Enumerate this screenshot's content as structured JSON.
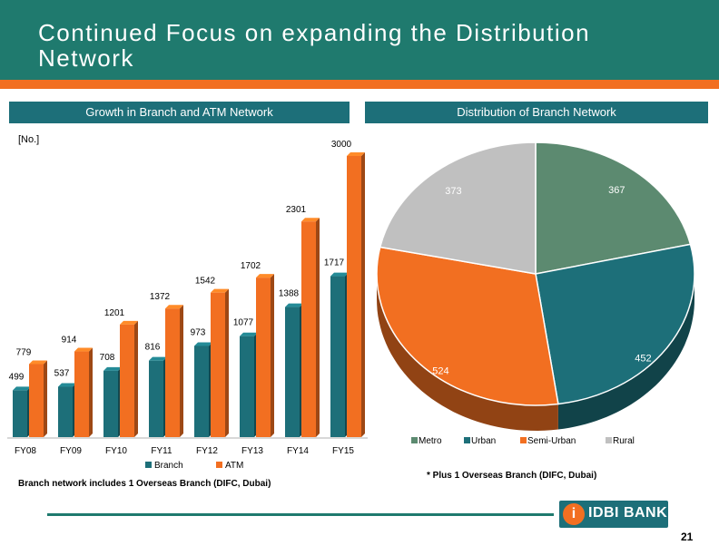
{
  "page": {
    "title": "Continued Focus on expanding the Distribution Network",
    "page_number": "21",
    "logo_text": "IDBI BANK"
  },
  "colors": {
    "header": "#1f7a6e",
    "accent": "#f26f21",
    "section_bar": "#1d6f79"
  },
  "bar_section": {
    "title": "Growth in Branch and ATM Network",
    "unit": "[No.]",
    "note": "Branch network includes 1 Overseas Branch (DIFC, Dubai)"
  },
  "pie_section": {
    "title": "Distribution of Branch Network",
    "note": "* Plus 1 Overseas Branch (DIFC, Dubai)"
  },
  "chart_data": [
    {
      "type": "bar",
      "title": "Growth in Branch and ATM Network",
      "ylabel": "[No.]",
      "categories": [
        "FY08",
        "FY09",
        "FY10",
        "FY11",
        "FY12",
        "FY13",
        "FY14",
        "FY15"
      ],
      "series": [
        {
          "name": "Branch",
          "color": "#1d6f79",
          "values": [
            499,
            537,
            708,
            816,
            973,
            1077,
            1388,
            1717
          ]
        },
        {
          "name": "ATM",
          "color": "#f26f21",
          "values": [
            779,
            914,
            1201,
            1372,
            1542,
            1702,
            2301,
            3000
          ]
        }
      ],
      "ylim": [
        0,
        3000
      ]
    },
    {
      "type": "pie",
      "title": "Distribution of Branch Network",
      "labels": [
        "Metro",
        "Urban",
        "Semi-Urban",
        "Rural"
      ],
      "values": [
        367,
        452,
        524,
        373
      ],
      "colors": [
        "#5c8a70",
        "#1d6f79",
        "#f26f21",
        "#c0c0c0"
      ]
    }
  ]
}
